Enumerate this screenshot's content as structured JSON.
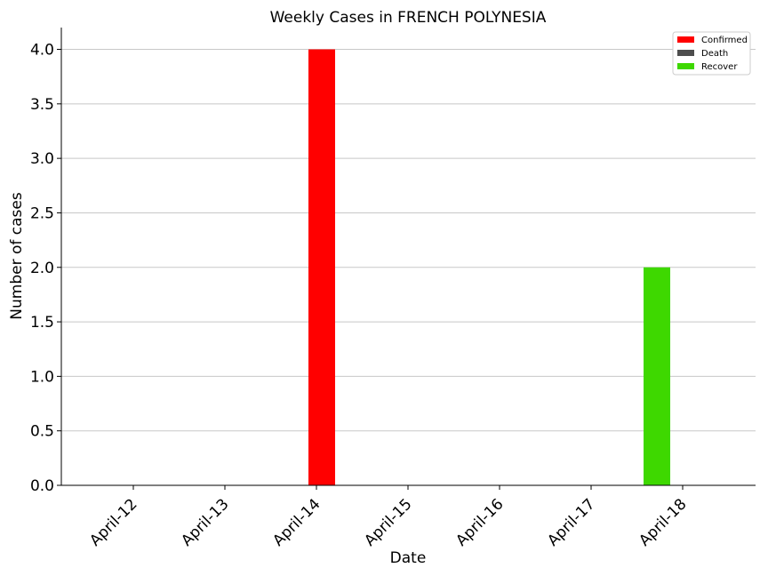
{
  "chart_data": {
    "type": "bar",
    "title": "Weekly Cases in FRENCH POLYNESIA",
    "xlabel": "Date",
    "ylabel": "Number of cases",
    "categories": [
      "April-12",
      "April-13",
      "April-14",
      "April-15",
      "April-16",
      "April-17",
      "April-18"
    ],
    "series": [
      {
        "name": "Confirmed",
        "color": "#ff0000",
        "values": [
          0,
          0,
          4,
          0,
          0,
          0,
          0
        ]
      },
      {
        "name": "Death",
        "color": "#4d4d4d",
        "values": [
          0,
          0,
          0,
          0,
          0,
          0,
          0
        ]
      },
      {
        "name": "Recover",
        "color": "#3ed800",
        "values": [
          0,
          0,
          0,
          0,
          0,
          0,
          2
        ]
      }
    ],
    "ylim": [
      0,
      4.2
    ],
    "yticks": [
      "0.0",
      "0.5",
      "1.0",
      "1.5",
      "2.0",
      "2.5",
      "3.0",
      "3.5",
      "4.0"
    ],
    "grid": "horizontal",
    "legend_position": "top-right",
    "x_tick_rotation": 45
  }
}
